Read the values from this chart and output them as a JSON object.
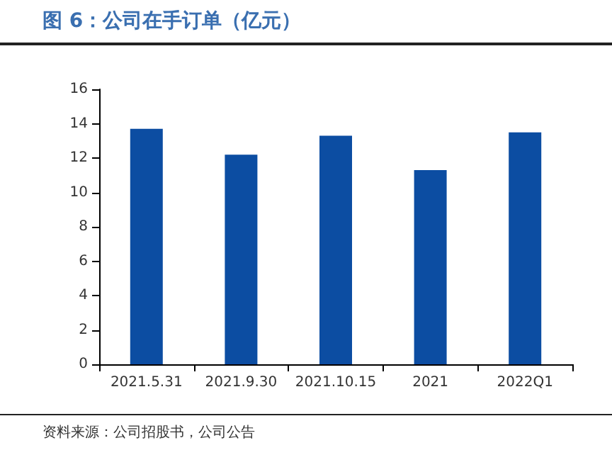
{
  "chart_data": {
    "type": "bar",
    "title": "图 6：公司在手订单（亿元）",
    "categories": [
      "2021.5.31",
      "2021.9.30",
      "2021.10.15",
      "2021",
      "2022Q1"
    ],
    "values": [
      13.7,
      12.2,
      13.3,
      11.3,
      13.5
    ],
    "color": "#0c4da2",
    "ylim": [
      0,
      16
    ],
    "yticks": [
      0,
      2,
      4,
      6,
      8,
      10,
      12,
      14,
      16
    ],
    "grid": false,
    "annotations": [
      "资料来源：公司招股书，公司公告"
    ]
  }
}
